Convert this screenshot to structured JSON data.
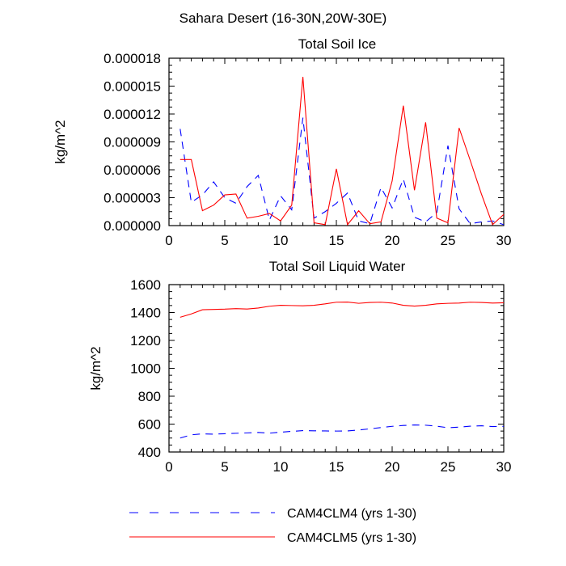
{
  "figure_title": "Sahara Desert (16-30N,20W-30E)",
  "legend": [
    {
      "label": "CAM4CLM4 (yrs 1-30)",
      "color": "#0000ff",
      "dash": "dashed"
    },
    {
      "label": "CAM4CLM5 (yrs 1-30)",
      "color": "#ff0000",
      "dash": "solid"
    }
  ],
  "chart_data": [
    {
      "type": "line",
      "title": "Total Soil Ice",
      "xlabel": "",
      "ylabel": "kg/m^2",
      "xlim": [
        0,
        30
      ],
      "ylim": [
        0,
        1.8e-05
      ],
      "xticks": [
        0,
        5,
        10,
        15,
        20,
        25,
        30
      ],
      "yticks": [
        0,
        3e-06,
        6e-06,
        9e-06,
        1.2e-05,
        1.5e-05,
        1.8e-05
      ],
      "ytick_labels": [
        "0.000000",
        "0.000003",
        "0.000006",
        "0.000009",
        "0.000012",
        "0.000015",
        "0.000018"
      ],
      "x": [
        1,
        2,
        3,
        4,
        5,
        6,
        7,
        8,
        9,
        10,
        11,
        12,
        13,
        14,
        15,
        16,
        17,
        18,
        19,
        20,
        21,
        22,
        23,
        24,
        25,
        26,
        27,
        28,
        29,
        30
      ],
      "series": [
        {
          "name": "CAM4CLM4 (yrs 1-30)",
          "color": "#0000ff",
          "dash": "dashed",
          "values": [
            1.04e-05,
            2.5e-06,
            3.3e-06,
            4.7e-06,
            3e-06,
            2.4e-06,
            4.2e-06,
            5.4e-06,
            6e-07,
            3.2e-06,
            1.7e-06,
            1.16e-05,
            8e-07,
            1.5e-06,
            2.4e-06,
            3.5e-06,
            5e-07,
            2e-07,
            4.1e-06,
            1.9e-06,
            5e-06,
            9e-07,
            4e-07,
            1.4e-06,
            8.6e-06,
            1.8e-06,
            2e-07,
            4e-07,
            5e-07,
            1e-07
          ]
        },
        {
          "name": "CAM4CLM5 (yrs 1-30)",
          "color": "#ff0000",
          "dash": "solid",
          "values": [
            7.1e-06,
            7.1e-06,
            1.6e-06,
            2.2e-06,
            3.3e-06,
            3.4e-06,
            8e-07,
            1e-06,
            1.3e-06,
            5e-07,
            2.2e-06,
            1.6e-05,
            3e-07,
            1e-07,
            6.1e-06,
            1e-07,
            1.6e-06,
            2e-07,
            4e-07,
            4.8e-06,
            1.29e-05,
            3.8e-06,
            1.11e-05,
            8e-07,
            3e-07,
            1.05e-05,
            7e-06,
            3.4e-06,
            1e-07,
            1.2e-06
          ]
        }
      ]
    },
    {
      "type": "line",
      "title": "Total Soil Liquid Water",
      "xlabel": "",
      "ylabel": "kg/m^2",
      "xlim": [
        0,
        30
      ],
      "ylim": [
        400,
        1600
      ],
      "xticks": [
        0,
        5,
        10,
        15,
        20,
        25,
        30
      ],
      "yticks": [
        400,
        600,
        800,
        1000,
        1200,
        1400,
        1600
      ],
      "ytick_labels": [
        "400",
        "600",
        "800",
        "1000",
        "1200",
        "1400",
        "1600"
      ],
      "x": [
        1,
        2,
        3,
        4,
        5,
        6,
        7,
        8,
        9,
        10,
        11,
        12,
        13,
        14,
        15,
        16,
        17,
        18,
        19,
        20,
        21,
        22,
        23,
        24,
        25,
        26,
        27,
        28,
        29,
        30
      ],
      "series": [
        {
          "name": "CAM4CLM4 (yrs 1-30)",
          "color": "#0000ff",
          "dash": "dashed",
          "values": [
            500,
            523,
            530,
            528,
            531,
            534,
            537,
            540,
            535,
            542,
            548,
            553,
            552,
            551,
            550,
            551,
            558,
            566,
            575,
            584,
            590,
            594,
            592,
            585,
            574,
            578,
            585,
            588,
            582,
            584
          ]
        },
        {
          "name": "CAM4CLM5 (yrs 1-30)",
          "color": "#ff0000",
          "dash": "solid",
          "values": [
            1366,
            1390,
            1420,
            1422,
            1424,
            1428,
            1425,
            1432,
            1445,
            1452,
            1450,
            1448,
            1452,
            1462,
            1474,
            1475,
            1466,
            1472,
            1474,
            1468,
            1452,
            1446,
            1452,
            1462,
            1466,
            1468,
            1474,
            1472,
            1468,
            1470
          ]
        }
      ]
    }
  ]
}
